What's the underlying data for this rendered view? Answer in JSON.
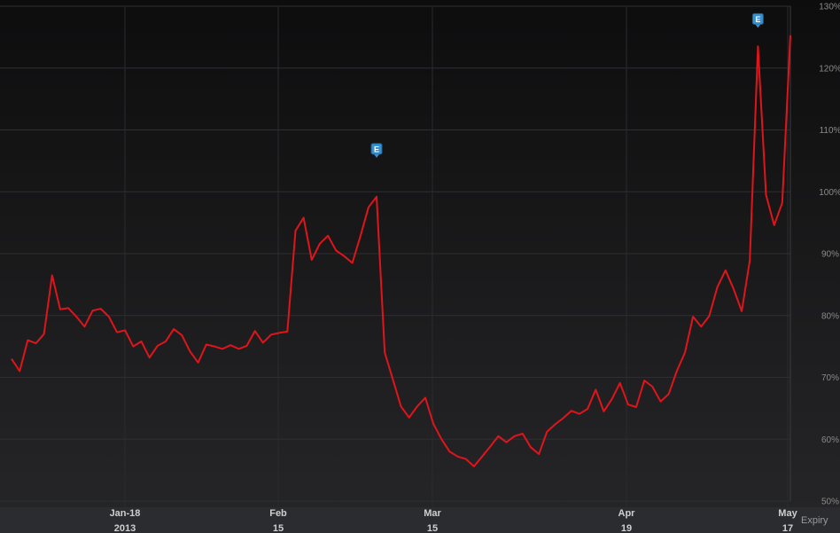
{
  "chart_data": {
    "type": "line",
    "title": "",
    "x_axis": {
      "label": "Expiry",
      "ticks": [
        {
          "top": "Jan-18",
          "bottom": "2013"
        },
        {
          "top": "Feb",
          "bottom": "15"
        },
        {
          "top": "Mar",
          "bottom": "15"
        },
        {
          "top": "Apr",
          "bottom": "19"
        },
        {
          "top": "May",
          "bottom": "17"
        }
      ]
    },
    "y_axis": {
      "ticks": [
        "50%",
        "60%",
        "70%",
        "80%",
        "90%",
        "100%",
        "110%",
        "120%",
        "130%"
      ],
      "ylim": [
        50,
        130
      ],
      "grid": true
    },
    "series": [
      {
        "color": "#e0151b",
        "values": [
          73,
          71,
          76,
          75.5,
          77,
          86.5,
          81,
          81.2,
          79.8,
          78.2,
          80.8,
          81.1,
          79.8,
          77.3,
          77.6,
          75,
          75.8,
          73.2,
          75.1,
          75.8,
          77.8,
          76.8,
          74.2,
          72.4,
          75.3,
          75,
          74.6,
          75.2,
          74.6,
          75.1,
          77.5,
          75.6,
          76.9,
          77.2,
          77.4,
          93.7,
          95.8,
          89,
          91.6,
          92.9,
          90.5,
          89.6,
          88.5,
          92.8,
          97.5,
          99.2,
          74,
          69.7,
          65.3,
          63.5,
          65.3,
          66.7,
          62.5,
          60,
          58,
          57.2,
          56.8,
          55.6,
          57.2,
          58.8,
          60.5,
          59.5,
          60.5,
          60.9,
          58.7,
          57.6,
          61.2,
          62.4,
          63.4,
          64.6,
          64.1,
          64.9,
          68,
          64.5,
          66.5,
          69.1,
          65.6,
          65.2,
          69.5,
          68.5,
          66.1,
          67.3,
          71,
          74,
          79.8,
          78.2,
          79.9,
          84.6,
          87.3,
          84.3,
          80.7,
          88.9,
          123.5,
          99.5,
          94.6,
          98.2,
          125.3
        ]
      }
    ],
    "annotations": [
      {
        "label": "E",
        "color": "#3a90cf"
      },
      {
        "label": "E",
        "color": "#3a90cf"
      }
    ],
    "legend": "none"
  }
}
